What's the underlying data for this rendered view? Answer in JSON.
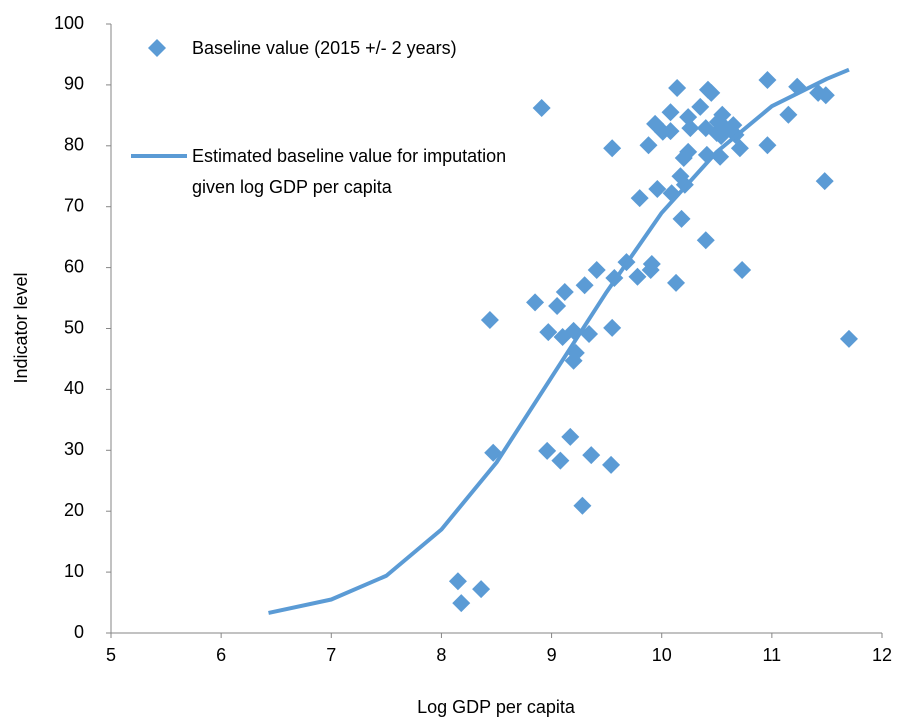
{
  "chart_data": {
    "type": "scatter",
    "xlabel": "Log GDP per capita",
    "ylabel": "Indicator level",
    "xlim": [
      5,
      12
    ],
    "xticks": [
      5,
      6,
      7,
      8,
      9,
      10,
      11,
      12
    ],
    "ylim": [
      0,
      100
    ],
    "yticks": [
      0,
      10,
      20,
      30,
      40,
      50,
      60,
      70,
      80,
      90,
      100
    ],
    "grid": false,
    "series": [
      {
        "name": "Baseline value (2015 +/- 2 years)",
        "type": "scatter",
        "color": "#5b9bd5",
        "x": [
          8.91,
          8.44,
          8.47,
          8.15,
          8.18,
          8.36,
          8.85,
          9.05,
          9.12,
          8.97,
          9.1,
          8.96,
          9.08,
          9.17,
          9.2,
          9.22,
          9.2,
          9.3,
          9.34,
          9.28,
          9.36,
          9.54,
          9.55,
          9.41,
          9.57,
          9.55,
          9.68,
          9.78,
          9.8,
          9.88,
          9.94,
          9.91,
          9.9,
          9.96,
          10.01,
          10.08,
          10.08,
          10.13,
          10.09,
          10.14,
          10.17,
          10.18,
          10.21,
          10.2,
          10.24,
          10.26,
          10.24,
          10.35,
          10.4,
          10.41,
          10.42,
          10.45,
          10.4,
          10.5,
          10.53,
          10.54,
          10.51,
          10.55,
          10.58,
          10.96,
          10.65,
          10.67,
          10.71,
          10.96,
          10.73,
          11.15,
          11.23,
          11.42,
          11.49,
          11.48,
          11.7
        ],
        "values": [
          86.2,
          51.4,
          29.6,
          8.5,
          4.9,
          7.2,
          54.3,
          53.7,
          56.0,
          49.4,
          48.6,
          29.9,
          28.3,
          32.2,
          44.7,
          46.0,
          49.6,
          57.1,
          49.1,
          20.9,
          29.2,
          27.6,
          50.1,
          59.6,
          58.3,
          79.6,
          60.9,
          58.5,
          71.4,
          80.1,
          83.6,
          60.6,
          59.6,
          72.9,
          82.3,
          82.4,
          85.5,
          57.5,
          72.2,
          89.5,
          75.0,
          68.0,
          73.6,
          78.0,
          84.7,
          82.9,
          79.0,
          86.4,
          82.9,
          78.5,
          89.2,
          88.7,
          64.5,
          82.1,
          78.2,
          81.6,
          83.9,
          85.1,
          82.9,
          90.8,
          83.4,
          81.8,
          79.6,
          80.1,
          59.6,
          85.1,
          89.7,
          88.7,
          88.3,
          74.2,
          48.3
        ]
      },
      {
        "name": "Estimated baseline value for imputation given log GDP per capita",
        "type": "line",
        "color": "#5b9bd5",
        "x": [
          6.43,
          7.0,
          7.5,
          8.0,
          8.5,
          9.0,
          9.5,
          10.0,
          10.5,
          11.0,
          11.5,
          11.7
        ],
        "values": [
          3.3,
          5.5,
          9.4,
          17.0,
          28.0,
          42.0,
          56.0,
          69.0,
          79.0,
          86.5,
          91.0,
          92.5
        ]
      }
    ]
  }
}
